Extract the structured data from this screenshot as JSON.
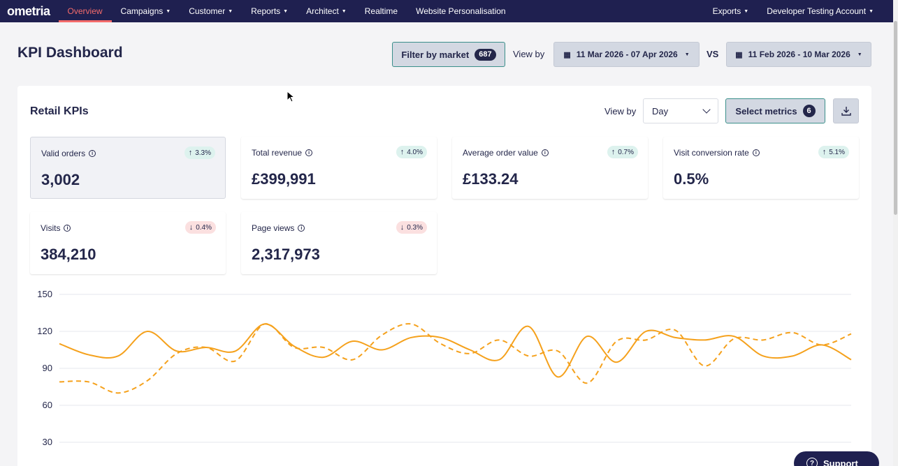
{
  "nav": {
    "logo": "ometria",
    "items": [
      {
        "label": "Overview",
        "active": true,
        "caret": false
      },
      {
        "label": "Campaigns",
        "caret": true
      },
      {
        "label": "Customer",
        "caret": true
      },
      {
        "label": "Reports",
        "caret": true
      },
      {
        "label": "Architect",
        "caret": true
      },
      {
        "label": "Realtime",
        "caret": false
      },
      {
        "label": "Website Personalisation",
        "caret": false
      }
    ],
    "right_items": [
      {
        "label": "Exports",
        "caret": true
      },
      {
        "label": "Developer Testing Account",
        "caret": true
      }
    ]
  },
  "header": {
    "title": "KPI Dashboard",
    "filter_label": "Filter by market",
    "filter_count": "687",
    "view_by_label": "View by",
    "date_range": "11 Mar 2026 - 07 Apr 2026",
    "vs_label": "VS",
    "compare_range": "11 Feb 2026 - 10 Mar 2026"
  },
  "card": {
    "title": "Retail KPIs",
    "view_by_label": "View by",
    "granularity": "Day",
    "select_metrics_label": "Select metrics",
    "metrics_count": "6"
  },
  "kpis": [
    {
      "label": "Valid orders",
      "delta": "3.3%",
      "direction": "up",
      "value": "3,002"
    },
    {
      "label": "Total revenue",
      "delta": "4.0%",
      "direction": "up",
      "value": "£399,991"
    },
    {
      "label": "Average order value",
      "delta": "0.7%",
      "direction": "up",
      "value": "£133.24"
    },
    {
      "label": "Visit conversion rate",
      "delta": "5.1%",
      "direction": "up",
      "value": "0.5%"
    },
    {
      "label": "Visits",
      "delta": "0.4%",
      "direction": "down",
      "value": "384,210"
    },
    {
      "label": "Page views",
      "delta": "0.3%",
      "direction": "down",
      "value": "2,317,973"
    }
  ],
  "chart_data": {
    "type": "line",
    "ylim": [
      30,
      150
    ],
    "yticks": [
      "150",
      "120",
      "90",
      "60",
      "30"
    ],
    "x": [
      1,
      2,
      3,
      4,
      5,
      6,
      7,
      8,
      9,
      10,
      11,
      12,
      13,
      14,
      15,
      16,
      17,
      18,
      19,
      20,
      21,
      22,
      23,
      24,
      25,
      26,
      27,
      28
    ],
    "series": [
      {
        "style": "solid",
        "color": "#f5a11c",
        "values": [
          110,
          101,
          100,
          120,
          104,
          107,
          104,
          126,
          108,
          99,
          112,
          105,
          115,
          115,
          105,
          97,
          124,
          83,
          116,
          95,
          120,
          115,
          113,
          116,
          100,
          100,
          109,
          97
        ]
      },
      {
        "style": "dashed",
        "color": "#f5a11c",
        "values": [
          79,
          79,
          70,
          80,
          102,
          107,
          96,
          126,
          107,
          107,
          97,
          117,
          126,
          110,
          102,
          113,
          100,
          104,
          78,
          112,
          113,
          121,
          92,
          114,
          113,
          119,
          109,
          118
        ]
      }
    ],
    "grid": true
  },
  "support": {
    "label": "Support"
  },
  "colors": {
    "nav_bg": "#1f2050",
    "accent": "#f36b6b",
    "line": "#f5a11c"
  }
}
